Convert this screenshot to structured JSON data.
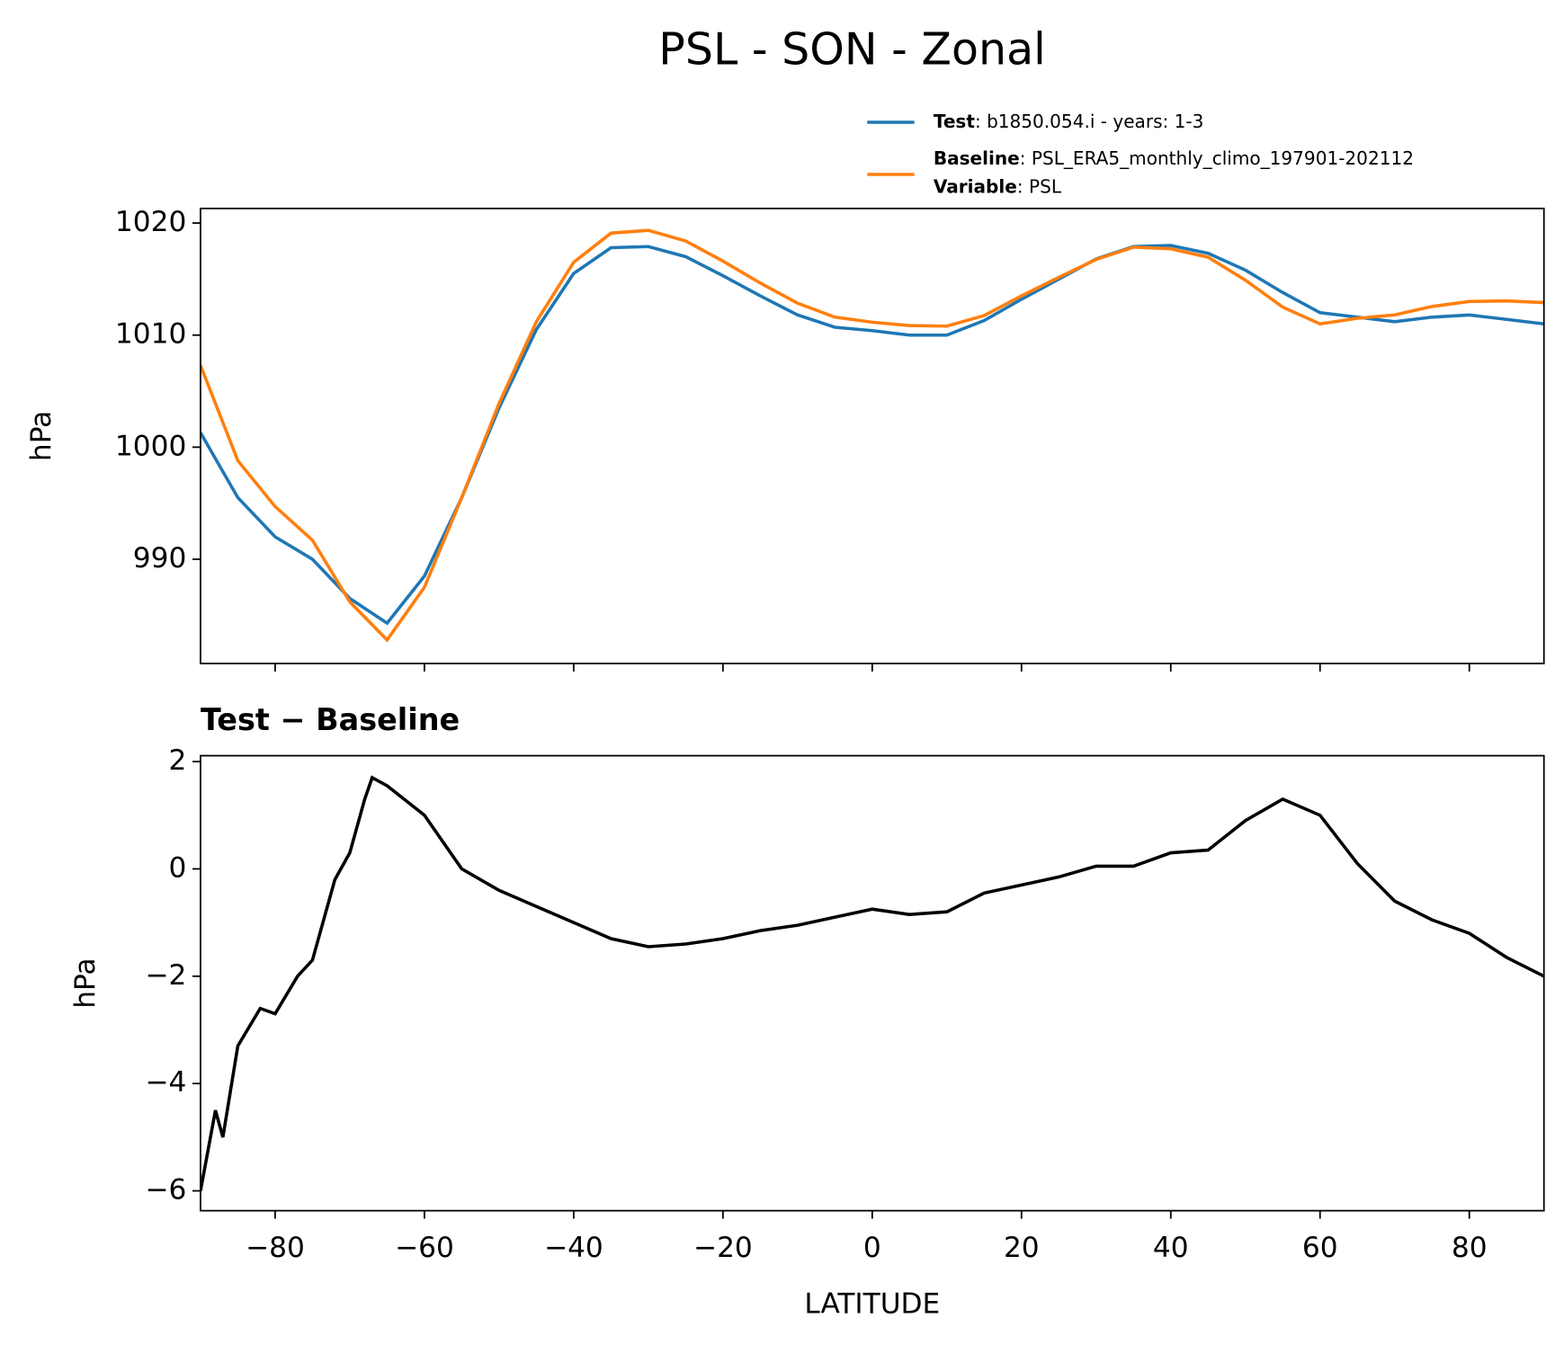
{
  "figure_title": "PSL - SON - Zonal",
  "chart_data": [
    {
      "type": "line",
      "ylabel": "hPa",
      "x": [
        -90,
        -85,
        -80,
        -75,
        -70,
        -65,
        -60,
        -55,
        -50,
        -45,
        -40,
        -35,
        -30,
        -25,
        -20,
        -15,
        -10,
        -5,
        0,
        5,
        10,
        15,
        20,
        25,
        30,
        35,
        40,
        45,
        50,
        55,
        60,
        65,
        70,
        75,
        80,
        85,
        90
      ],
      "series": [
        {
          "name": "Test",
          "legend_label": ": b1850.054.i - years: 1-3",
          "color": "#1f77b4",
          "values": [
            1001.3,
            995.5,
            992.0,
            990.0,
            986.5,
            984.3,
            988.5,
            995.5,
            1003.5,
            1010.5,
            1015.5,
            1017.8,
            1017.9,
            1017.0,
            1015.3,
            1013.5,
            1011.8,
            1010.7,
            1010.4,
            1010.0,
            1010.0,
            1011.3,
            1013.2,
            1015.0,
            1016.8,
            1017.9,
            1018.0,
            1017.3,
            1015.8,
            1013.8,
            1012.0,
            1011.6,
            1011.2,
            1011.6,
            1011.8,
            1011.4,
            1011.0
          ]
        },
        {
          "name": "Baseline",
          "legend_label": ": PSL_ERA5_monthly_climo_197901-202112",
          "color": "#ff7f0e",
          "values": [
            1007.3,
            998.8,
            994.7,
            991.7,
            986.2,
            982.8,
            987.5,
            995.5,
            1003.9,
            1011.2,
            1016.5,
            1019.1,
            1019.35,
            1018.4,
            1016.6,
            1014.65,
            1012.85,
            1011.6,
            1011.15,
            1010.85,
            1010.8,
            1011.75,
            1013.5,
            1015.15,
            1016.75,
            1017.85,
            1017.7,
            1016.95,
            1014.9,
            1012.5,
            1011.0,
            1011.5,
            1011.8,
            1012.55,
            1013.0,
            1013.05,
            1012.9
          ]
        }
      ],
      "legend_extra": {
        "name": "Variable",
        "label": ": PSL"
      },
      "xlim": [
        -90,
        90
      ],
      "xticks": [
        -80,
        -60,
        -40,
        -20,
        0,
        20,
        40,
        60,
        80
      ],
      "xticklabels": false,
      "ylim": [
        980.7,
        1021.3
      ],
      "yticks": [
        990,
        1000,
        1010,
        1020
      ]
    },
    {
      "type": "line",
      "title": "Test − Baseline",
      "ylabel": "hPa",
      "xlabel": "LATITUDE",
      "color": "#000000",
      "x": [
        -90,
        -88,
        -87,
        -85,
        -82,
        -80,
        -77,
        -75,
        -72,
        -70,
        -68,
        -67,
        -65,
        -60,
        -55,
        -50,
        -45,
        -40,
        -35,
        -30,
        -25,
        -20,
        -15,
        -10,
        -5,
        0,
        5,
        10,
        15,
        20,
        25,
        30,
        35,
        40,
        45,
        50,
        55,
        60,
        65,
        70,
        75,
        80,
        85,
        90
      ],
      "values": [
        -6.0,
        -4.5,
        -5.0,
        -3.3,
        -2.6,
        -2.7,
        -2.0,
        -1.7,
        -0.2,
        0.3,
        1.3,
        1.7,
        1.55,
        1.0,
        0.0,
        -0.4,
        -0.7,
        -1.0,
        -1.3,
        -1.45,
        -1.4,
        -1.3,
        -1.15,
        -1.05,
        -0.9,
        -0.75,
        -0.85,
        -0.8,
        -0.45,
        -0.3,
        -0.15,
        0.05,
        0.05,
        0.3,
        0.35,
        0.9,
        1.3,
        1.0,
        0.1,
        -0.6,
        -0.95,
        -1.2,
        -1.65,
        -2.0
      ],
      "xlim": [
        -90,
        90
      ],
      "xticks": [
        {
          "value": -80,
          "label": "−80"
        },
        {
          "value": -60,
          "label": "−60"
        },
        {
          "value": -40,
          "label": "−40"
        },
        {
          "value": -20,
          "label": "−20"
        },
        0,
        20,
        40,
        60,
        80
      ],
      "xticklabels": true,
      "ylim": [
        -6.37,
        2.11
      ],
      "yticks": [
        {
          "value": -6,
          "label": "−6"
        },
        {
          "value": -4,
          "label": "−4"
        },
        {
          "value": -2,
          "label": "−2"
        },
        0,
        2
      ]
    }
  ]
}
